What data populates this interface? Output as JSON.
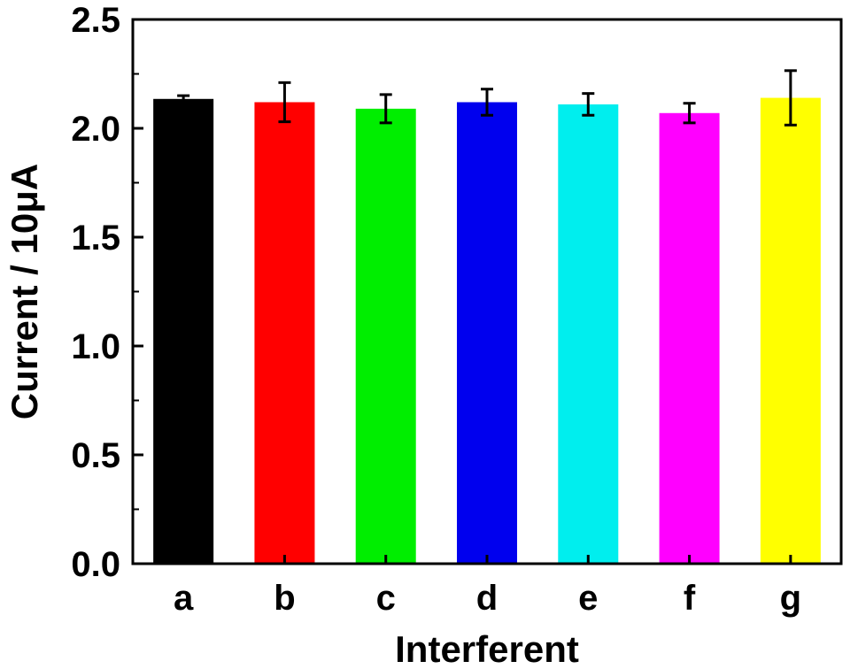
{
  "chart_data": {
    "type": "bar",
    "title": "",
    "xlabel": "Interferent",
    "ylabel": "Current / 10μA",
    "categories": [
      "a",
      "b",
      "c",
      "d",
      "e",
      "f",
      "g"
    ],
    "values": [
      2.135,
      2.12,
      2.09,
      2.12,
      2.11,
      2.07,
      2.14
    ],
    "error": [
      0.015,
      0.09,
      0.065,
      0.06,
      0.05,
      0.045,
      0.125
    ],
    "colors": [
      "#000000",
      "#ff0000",
      "#00ee00",
      "#0000ee",
      "#00eeee",
      "#ff00ff",
      "#ffff00"
    ],
    "ylim": [
      0,
      2.5
    ],
    "yticks": [
      "0.0",
      "0.5",
      "1.0",
      "1.5",
      "2.0",
      "2.5"
    ],
    "grid": false,
    "legend": "none"
  }
}
